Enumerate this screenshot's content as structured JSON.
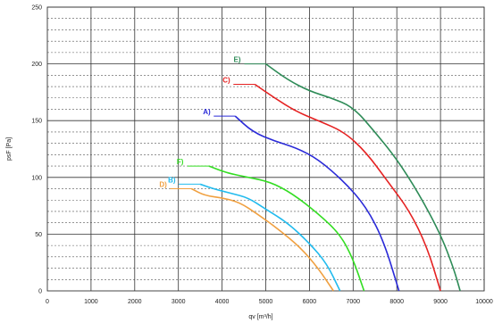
{
  "chart_data": {
    "type": "line",
    "xlabel": "qv [m³/h]",
    "ylabel": "psF [Pa]",
    "xlim": [
      0,
      10000
    ],
    "ylim": [
      0,
      250
    ],
    "x_ticks": [
      "0",
      "1000",
      "2000",
      "3000",
      "4000",
      "5000",
      "6000",
      "7000",
      "8000",
      "9000",
      "10000"
    ],
    "y_ticks": [
      "0",
      "50",
      "100",
      "150",
      "200",
      "250"
    ],
    "grid": "on",
    "series": [
      {
        "name": "E)",
        "color": "#2e8b57",
        "x": [
          5000,
          5500,
          6000,
          6500,
          7000,
          7500,
          8000,
          8500,
          9000,
          9300,
          9450
        ],
        "y": [
          200,
          186,
          176,
          170,
          162,
          140,
          116,
          86,
          50,
          20,
          0
        ]
      },
      {
        "name": "C)",
        "color": "#e52222",
        "x": [
          4750,
          5200,
          5700,
          6200,
          6800,
          7300,
          7800,
          8300,
          8700,
          9000
        ],
        "y": [
          182,
          170,
          158,
          150,
          140,
          122,
          96,
          70,
          38,
          0
        ]
      },
      {
        "name": "A)",
        "color": "#2a2ad8",
        "x": [
          4300,
          4700,
          5200,
          5700,
          6200,
          6800,
          7300,
          7700,
          8050
        ],
        "y": [
          154,
          140,
          132,
          126,
          116,
          96,
          74,
          44,
          0
        ]
      },
      {
        "name": "F)",
        "color": "#33dd22",
        "x": [
          3700,
          4100,
          4600,
          5100,
          5600,
          6200,
          6700,
          7000,
          7250
        ],
        "y": [
          110,
          104,
          100,
          96,
          86,
          68,
          50,
          28,
          0
        ]
      },
      {
        "name": "B)",
        "color": "#22bbee",
        "x": [
          3500,
          3800,
          4200,
          4600,
          5000,
          5500,
          6000,
          6400,
          6700
        ],
        "y": [
          94,
          90,
          86,
          82,
          72,
          60,
          42,
          24,
          0
        ]
      },
      {
        "name": "D)",
        "color": "#f0a040",
        "x": [
          3300,
          3600,
          4000,
          4400,
          4800,
          5300,
          5800,
          6200,
          6550
        ],
        "y": [
          90,
          84,
          82,
          78,
          68,
          54,
          38,
          20,
          0
        ]
      }
    ]
  }
}
